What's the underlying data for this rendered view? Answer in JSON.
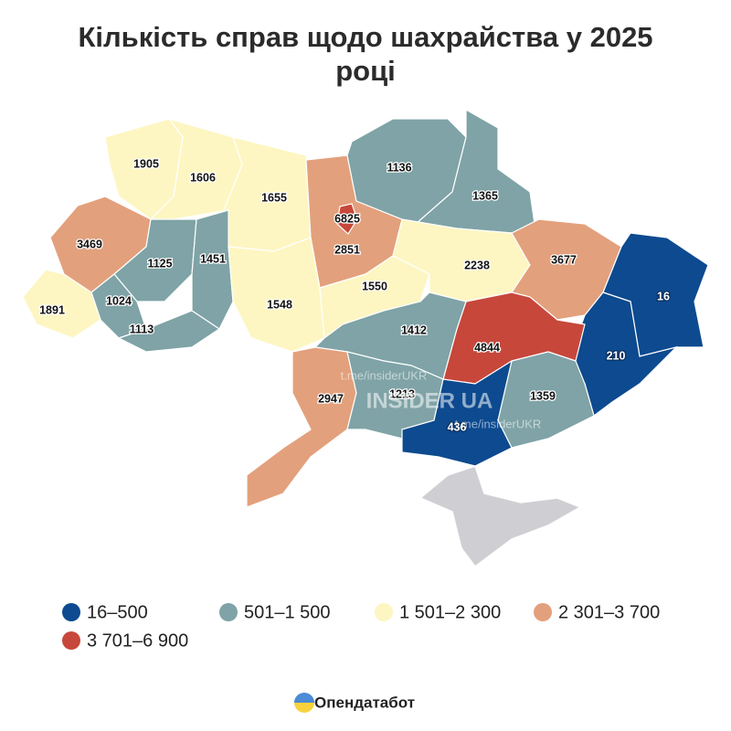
{
  "title": "Кількість справ щодо шахрайства у 2025 році",
  "regions": [
    {
      "value": "1905",
      "color": "#fdf6c2"
    },
    {
      "value": "1606",
      "color": "#fdf6c2"
    },
    {
      "value": "1655",
      "color": "#fdf6c2"
    },
    {
      "value": "2851",
      "color": "#e3a07c"
    },
    {
      "value": "6825",
      "color": "#c7473b"
    },
    {
      "value": "1136",
      "color": "#7fa3a6"
    },
    {
      "value": "1365",
      "color": "#7fa3a6"
    },
    {
      "value": "3469",
      "color": "#e3a07c"
    },
    {
      "value": "1125",
      "color": "#7fa3a6"
    },
    {
      "value": "1451",
      "color": "#7fa3a6"
    },
    {
      "value": "1024",
      "color": "#7fa3a6"
    },
    {
      "value": "1891",
      "color": "#fdf6c2"
    },
    {
      "value": "1113",
      "color": "#7fa3a6"
    },
    {
      "value": "1548",
      "color": "#fdf6c2"
    },
    {
      "value": "1550",
      "color": "#fdf6c2"
    },
    {
      "value": "2238",
      "color": "#fdf6c2"
    },
    {
      "value": "3677",
      "color": "#e3a07c"
    },
    {
      "value": "16",
      "color": "#0d4a8f"
    },
    {
      "value": "210",
      "color": "#0d4a8f"
    },
    {
      "value": "4844",
      "color": "#c7473b"
    },
    {
      "value": "1412",
      "color": "#7fa3a6"
    },
    {
      "value": "2947",
      "color": "#e3a07c"
    },
    {
      "value": "1213",
      "color": "#7fa3a6"
    },
    {
      "value": "1359",
      "color": "#7fa3a6"
    },
    {
      "value": "436",
      "color": "#0d4a8f"
    }
  ],
  "watermark": {
    "brand": "INSIDER UA",
    "link": "t.me/insiderUKR"
  },
  "legend": [
    {
      "label": "16–500",
      "color": "#0d4a8f"
    },
    {
      "label": "501–1 500",
      "color": "#7fa3a6"
    },
    {
      "label": "1 501–2 300",
      "color": "#fdf6c2"
    },
    {
      "label": "2 301–3 700",
      "color": "#e3a07c"
    },
    {
      "label": "3 701–6 900",
      "color": "#c7473b"
    }
  ],
  "footer": "Опендатабот"
}
